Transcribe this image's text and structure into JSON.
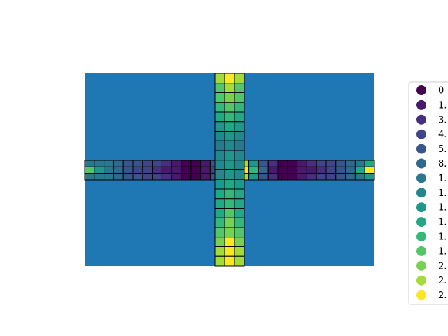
{
  "chart_data": {
    "type": "heatmap",
    "title": "",
    "xlabel": "",
    "ylabel": "",
    "grid": false,
    "axes_visible": false,
    "background_color": "#1f77b4",
    "cell_edge_color": "#000000",
    "colormap": "viridis",
    "legend": {
      "placement": "right",
      "marker": "circle",
      "entries": [
        "0",
        "1.",
        "3.",
        "4.",
        "5.",
        "8.",
        "1.",
        "1.",
        "1.",
        "1.",
        "1.",
        "1.",
        "2.",
        "2.",
        "2."
      ],
      "colors": [
        "#440154",
        "#481a6c",
        "#472f7d",
        "#414487",
        "#39568c",
        "#31688e",
        "#2a788e",
        "#23888e",
        "#1f988b",
        "#22a884",
        "#35b779",
        "#54c568",
        "#7ad151",
        "#a5db36",
        "#fde725"
      ]
    },
    "horizontal_bar": {
      "rows": 3,
      "cols": 30,
      "levels": [
        [
          6,
          6,
          6,
          5,
          4,
          4,
          3,
          3,
          2,
          1,
          0,
          0,
          1,
          4,
          10,
          11,
          13,
          8,
          4,
          2,
          0,
          0,
          1,
          2,
          3,
          3,
          4,
          5,
          6,
          9
        ],
        [
          11,
          8,
          6,
          5,
          4,
          3,
          3,
          2,
          1,
          1,
          0,
          0,
          1,
          3,
          11,
          12,
          14,
          10,
          5,
          1,
          0,
          0,
          1,
          1,
          2,
          3,
          4,
          5,
          9,
          14
        ],
        [
          6,
          6,
          6,
          5,
          4,
          4,
          3,
          3,
          2,
          1,
          0,
          0,
          1,
          4,
          10,
          11,
          13,
          8,
          4,
          2,
          0,
          0,
          1,
          2,
          3,
          3,
          4,
          5,
          6,
          8
        ]
      ]
    },
    "vertical_bar": {
      "rows": 20,
      "cols": 3,
      "levels": [
        [
          13,
          14,
          13
        ],
        [
          11,
          13,
          11
        ],
        [
          11,
          12,
          11
        ],
        [
          10,
          11,
          10
        ],
        [
          9,
          10,
          9
        ],
        [
          8,
          9,
          8
        ],
        [
          7,
          8,
          7
        ],
        [
          6,
          7,
          6
        ],
        [
          7,
          8,
          7
        ],
        [
          7,
          8,
          7
        ],
        [
          7,
          8,
          7
        ],
        [
          8,
          9,
          8
        ],
        [
          9,
          10,
          9
        ],
        [
          9,
          10,
          9
        ],
        [
          9,
          11,
          9
        ],
        [
          10,
          12,
          10
        ],
        [
          11,
          12,
          11
        ],
        [
          12,
          14,
          12
        ],
        [
          13,
          14,
          13
        ],
        [
          13,
          14,
          13
        ]
      ]
    }
  }
}
